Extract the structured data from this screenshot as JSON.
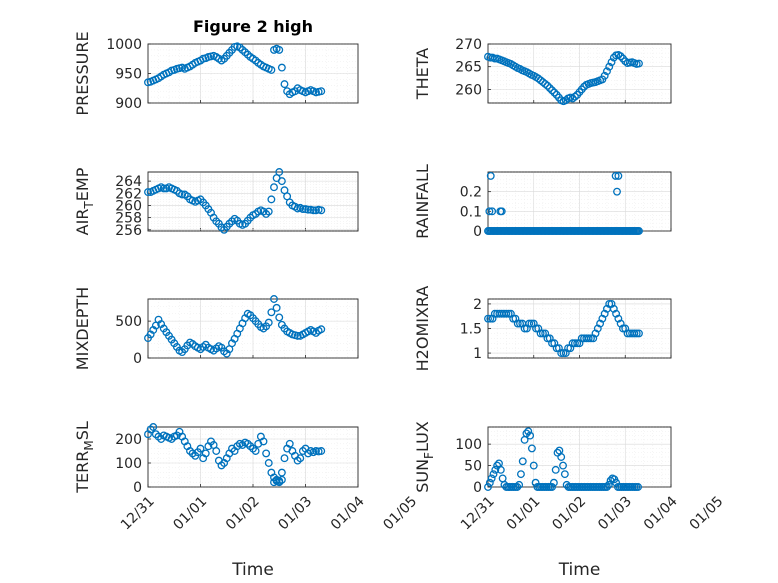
{
  "chart_data": [
    {
      "id": "pressure",
      "type": "scatter",
      "title": "Figure 2 high",
      "ylabel": "PRESSURE",
      "ylim": [
        900,
        1000
      ],
      "yticks": [
        900,
        950,
        1000
      ],
      "xlim": [
        0,
        4
      ],
      "xtick_labels": [],
      "x": [
        0,
        0.05,
        0.1,
        0.15,
        0.2,
        0.25,
        0.3,
        0.35,
        0.4,
        0.45,
        0.5,
        0.55,
        0.6,
        0.65,
        0.7,
        0.75,
        0.8,
        0.85,
        0.9,
        0.95,
        1.0,
        1.05,
        1.1,
        1.15,
        1.2,
        1.25,
        1.3,
        1.35,
        1.4,
        1.45,
        1.5,
        1.55,
        1.6,
        1.65,
        1.7,
        1.75,
        1.8,
        1.85,
        1.9,
        1.95,
        2.0,
        2.05,
        2.1,
        2.15,
        2.2,
        2.25,
        2.3,
        2.35,
        2.4,
        2.45,
        2.5,
        2.55,
        2.6,
        2.65,
        2.7,
        2.75,
        2.8,
        2.85,
        2.9,
        2.95,
        3.0,
        3.05,
        3.1,
        3.15,
        3.2,
        3.25,
        3.3
      ],
      "values": [
        935,
        936,
        938,
        940,
        942,
        945,
        948,
        950,
        952,
        955,
        956,
        958,
        959,
        960,
        958,
        960,
        962,
        965,
        968,
        970,
        972,
        975,
        976,
        978,
        979,
        980,
        978,
        975,
        972,
        975,
        980,
        985,
        990,
        995,
        996,
        994,
        990,
        986,
        982,
        978,
        975,
        972,
        968,
        965,
        962,
        960,
        958,
        956,
        990,
        992,
        990,
        960,
        932,
        920,
        915,
        918,
        920,
        925,
        922,
        920,
        918,
        920,
        922,
        920,
        918,
        919,
        920
      ]
    },
    {
      "id": "theta",
      "type": "scatter",
      "title": "",
      "ylabel": "THETA",
      "ylim": [
        257,
        270
      ],
      "yticks": [
        260,
        265,
        270
      ],
      "xlim": [
        0,
        4
      ],
      "xtick_labels": [],
      "x": [
        0,
        0.05,
        0.1,
        0.15,
        0.2,
        0.25,
        0.3,
        0.35,
        0.4,
        0.45,
        0.5,
        0.55,
        0.6,
        0.65,
        0.7,
        0.75,
        0.8,
        0.85,
        0.9,
        0.95,
        1.0,
        1.05,
        1.1,
        1.15,
        1.2,
        1.25,
        1.3,
        1.35,
        1.4,
        1.45,
        1.5,
        1.55,
        1.6,
        1.65,
        1.7,
        1.75,
        1.8,
        1.85,
        1.9,
        1.95,
        2.0,
        2.05,
        2.1,
        2.15,
        2.2,
        2.25,
        2.3,
        2.35,
        2.4,
        2.45,
        2.5,
        2.55,
        2.6,
        2.65,
        2.7,
        2.75,
        2.8,
        2.85,
        2.9,
        2.95,
        3.0,
        3.05,
        3.1,
        3.15,
        3.2,
        3.25,
        3.3
      ],
      "values": [
        267.2,
        267.0,
        267.0,
        266.8,
        266.8,
        266.6,
        266.4,
        266.2,
        266.0,
        265.8,
        265.6,
        265.3,
        265.0,
        264.7,
        264.5,
        264.2,
        264.0,
        263.8,
        263.5,
        263.2,
        263.0,
        262.7,
        262.4,
        262.0,
        261.6,
        261.2,
        260.8,
        260.3,
        259.8,
        259.3,
        258.8,
        258.2,
        257.6,
        257.4,
        257.6,
        258.0,
        258.2,
        258.0,
        258.4,
        258.8,
        259.4,
        260.0,
        260.6,
        261.0,
        261.2,
        261.4,
        261.5,
        261.6,
        261.8,
        262.0,
        262.2,
        263.0,
        264.0,
        265.0,
        266.0,
        267.0,
        267.5,
        267.6,
        267.3,
        266.8,
        266.2,
        265.8,
        265.9,
        266.0,
        265.8,
        265.6,
        265.7
      ]
    },
    {
      "id": "air_temp",
      "type": "scatter",
      "title": "",
      "ylabel": "AIR",
      "ylabel_sub": "T",
      "ylabel_suffix": "EMP",
      "ylim": [
        255.8,
        265.5
      ],
      "yticks": [
        256,
        258,
        260,
        262,
        264
      ],
      "xlim": [
        0,
        4
      ],
      "xtick_labels": [],
      "x": [
        0,
        0.05,
        0.1,
        0.15,
        0.2,
        0.25,
        0.3,
        0.35,
        0.4,
        0.45,
        0.5,
        0.55,
        0.6,
        0.65,
        0.7,
        0.75,
        0.8,
        0.85,
        0.9,
        0.95,
        1.0,
        1.05,
        1.1,
        1.15,
        1.2,
        1.25,
        1.3,
        1.35,
        1.4,
        1.45,
        1.5,
        1.55,
        1.6,
        1.65,
        1.7,
        1.75,
        1.8,
        1.85,
        1.9,
        1.95,
        2.0,
        2.05,
        2.1,
        2.15,
        2.2,
        2.25,
        2.3,
        2.35,
        2.4,
        2.45,
        2.5,
        2.55,
        2.6,
        2.65,
        2.7,
        2.75,
        2.8,
        2.85,
        2.9,
        2.95,
        3.0,
        3.05,
        3.1,
        3.15,
        3.2,
        3.25,
        3.3
      ],
      "values": [
        262.2,
        262.2,
        262.4,
        262.6,
        262.8,
        263.0,
        262.8,
        262.8,
        263.0,
        262.8,
        262.6,
        262.4,
        262.0,
        261.8,
        261.8,
        261.5,
        261.0,
        260.8,
        260.6,
        260.8,
        261.0,
        260.5,
        260.0,
        259.4,
        258.8,
        258.0,
        257.4,
        257.0,
        256.4,
        256.0,
        256.5,
        257.0,
        257.4,
        257.8,
        257.5,
        257.0,
        256.8,
        257.0,
        257.5,
        258.0,
        258.4,
        258.6,
        259.0,
        259.2,
        259.0,
        258.6,
        259.0,
        261.0,
        263.0,
        264.5,
        265.5,
        264.0,
        262.5,
        261.5,
        260.5,
        260.0,
        259.8,
        259.5,
        259.6,
        259.4,
        259.4,
        259.3,
        259.3,
        259.2,
        259.2,
        259.3,
        259.2
      ]
    },
    {
      "id": "rainfall",
      "type": "scatter",
      "title": "",
      "ylabel": "RAINFALL",
      "ylim": [
        0,
        0.3
      ],
      "yticks": [
        0,
        0.1,
        0.2
      ],
      "ytick_labels": [
        "0",
        "0.1",
        "0.2"
      ],
      "xlim": [
        0,
        4
      ],
      "xtick_labels": [],
      "x": [
        0,
        0.03,
        0.06,
        0.09,
        0.12,
        0.15,
        0.18,
        0.21,
        0.24,
        0.27,
        0.3,
        0.33,
        0.36,
        0.39,
        0.42,
        0.45,
        0.48,
        0.51,
        0.54,
        0.57,
        0.6,
        0.63,
        0.66,
        0.69,
        0.72,
        0.75,
        0.78,
        0.81,
        0.84,
        0.87,
        0.9,
        0.93,
        0.96,
        0.99,
        1.02,
        1.05,
        1.08,
        1.11,
        1.14,
        1.17,
        1.2,
        1.23,
        1.26,
        1.29,
        1.32,
        1.35,
        1.38,
        1.41,
        1.44,
        1.47,
        1.5,
        1.53,
        1.56,
        1.59,
        1.62,
        1.65,
        1.68,
        1.71,
        1.74,
        1.77,
        1.8,
        1.83,
        1.86,
        1.89,
        1.92,
        1.95,
        1.98,
        2.01,
        2.04,
        2.07,
        2.1,
        2.13,
        2.16,
        2.19,
        2.22,
        2.25,
        2.28,
        2.31,
        2.34,
        2.37,
        2.4,
        2.43,
        2.46,
        2.49,
        2.52,
        2.55,
        2.58,
        2.61,
        2.64,
        2.67,
        2.7,
        2.73,
        2.76,
        2.79,
        2.82,
        2.85,
        2.88,
        2.91,
        2.94,
        2.97,
        3.0,
        3.03,
        3.06,
        3.09,
        3.12,
        3.15,
        3.18,
        3.21,
        3.24,
        3.27,
        3.3,
        0.03,
        0.06,
        0.09,
        0.27,
        0.3,
        2.79,
        2.82,
        2.85
      ],
      "values": [
        0,
        0,
        0,
        0,
        0,
        0,
        0,
        0,
        0,
        0,
        0,
        0,
        0,
        0,
        0,
        0,
        0,
        0,
        0,
        0,
        0,
        0,
        0,
        0,
        0,
        0,
        0,
        0,
        0,
        0,
        0,
        0,
        0,
        0,
        0,
        0,
        0,
        0,
        0,
        0,
        0,
        0,
        0,
        0,
        0,
        0,
        0,
        0,
        0,
        0,
        0,
        0,
        0,
        0,
        0,
        0,
        0,
        0,
        0,
        0,
        0,
        0,
        0,
        0,
        0,
        0,
        0,
        0,
        0,
        0,
        0,
        0,
        0,
        0,
        0,
        0,
        0,
        0,
        0,
        0,
        0,
        0,
        0,
        0,
        0,
        0,
        0,
        0,
        0,
        0,
        0,
        0,
        0,
        0,
        0,
        0,
        0,
        0,
        0,
        0,
        0,
        0,
        0,
        0,
        0,
        0,
        0,
        0,
        0,
        0,
        0,
        0.1,
        0.28,
        0.1,
        0.1,
        0.1,
        0.28,
        0.2,
        0.28
      ]
    },
    {
      "id": "mixdepth",
      "type": "scatter",
      "title": "",
      "ylabel": "MIXDEPTH",
      "ylim": [
        0,
        800
      ],
      "yticks": [
        0,
        500
      ],
      "xlim": [
        0,
        4
      ],
      "xtick_labels": [],
      "x": [
        0,
        0.05,
        0.1,
        0.15,
        0.2,
        0.25,
        0.3,
        0.35,
        0.4,
        0.45,
        0.5,
        0.55,
        0.6,
        0.65,
        0.7,
        0.75,
        0.8,
        0.85,
        0.9,
        0.95,
        1.0,
        1.05,
        1.1,
        1.15,
        1.2,
        1.25,
        1.3,
        1.35,
        1.4,
        1.45,
        1.5,
        1.55,
        1.6,
        1.65,
        1.7,
        1.75,
        1.8,
        1.85,
        1.9,
        1.95,
        2.0,
        2.05,
        2.1,
        2.15,
        2.2,
        2.25,
        2.3,
        2.35,
        2.4,
        2.45,
        2.5,
        2.55,
        2.6,
        2.65,
        2.7,
        2.75,
        2.8,
        2.85,
        2.9,
        2.95,
        3.0,
        3.05,
        3.1,
        3.15,
        3.2,
        3.25,
        3.3
      ],
      "values": [
        270,
        320,
        380,
        440,
        520,
        460,
        400,
        350,
        300,
        250,
        200,
        150,
        100,
        80,
        120,
        170,
        210,
        190,
        160,
        140,
        120,
        150,
        180,
        140,
        120,
        100,
        130,
        160,
        140,
        90,
        60,
        120,
        200,
        260,
        330,
        400,
        470,
        540,
        600,
        580,
        540,
        500,
        460,
        420,
        400,
        430,
        480,
        620,
        800,
        680,
        550,
        450,
        400,
        360,
        340,
        320,
        310,
        300,
        300,
        320,
        340,
        360,
        380,
        360,
        340,
        370,
        390
      ]
    },
    {
      "id": "h2omixra",
      "type": "scatter",
      "title": "",
      "ylabel": "H2OMIXRA",
      "ylim": [
        0.9,
        2.1
      ],
      "yticks": [
        1,
        1.5,
        2
      ],
      "ytick_labels": [
        "1",
        "1.5",
        "2"
      ],
      "xlim": [
        0,
        4
      ],
      "xtick_labels": [],
      "x": [
        0,
        0.05,
        0.1,
        0.15,
        0.2,
        0.25,
        0.3,
        0.35,
        0.4,
        0.45,
        0.5,
        0.55,
        0.6,
        0.65,
        0.7,
        0.75,
        0.8,
        0.85,
        0.9,
        0.95,
        1.0,
        1.05,
        1.1,
        1.15,
        1.2,
        1.25,
        1.3,
        1.35,
        1.4,
        1.45,
        1.5,
        1.55,
        1.6,
        1.65,
        1.7,
        1.75,
        1.8,
        1.85,
        1.9,
        1.95,
        2.0,
        2.05,
        2.1,
        2.15,
        2.2,
        2.25,
        2.3,
        2.35,
        2.4,
        2.45,
        2.5,
        2.55,
        2.6,
        2.65,
        2.7,
        2.75,
        2.8,
        2.85,
        2.9,
        2.95,
        3.0,
        3.05,
        3.1,
        3.15,
        3.2,
        3.25,
        3.3
      ],
      "values": [
        1.7,
        1.7,
        1.7,
        1.8,
        1.8,
        1.8,
        1.8,
        1.8,
        1.8,
        1.8,
        1.8,
        1.7,
        1.7,
        1.6,
        1.6,
        1.6,
        1.5,
        1.5,
        1.6,
        1.6,
        1.6,
        1.5,
        1.5,
        1.4,
        1.4,
        1.4,
        1.3,
        1.3,
        1.2,
        1.2,
        1.1,
        1.1,
        1.0,
        1.0,
        1.0,
        1.1,
        1.1,
        1.2,
        1.2,
        1.2,
        1.2,
        1.3,
        1.3,
        1.3,
        1.3,
        1.3,
        1.3,
        1.4,
        1.5,
        1.6,
        1.7,
        1.8,
        1.9,
        2.0,
        2.0,
        1.9,
        1.8,
        1.7,
        1.6,
        1.5,
        1.5,
        1.4,
        1.4,
        1.4,
        1.4,
        1.4,
        1.4
      ]
    },
    {
      "id": "terr_msl",
      "type": "scatter",
      "title": "",
      "ylabel": "TERR",
      "ylabel_sub": "M",
      "ylabel_suffix": "SL",
      "ylim": [
        0,
        250
      ],
      "yticks": [
        0,
        100,
        200
      ],
      "xlim": [
        0,
        4
      ],
      "xtick_labels": [
        "12/31",
        "01/01",
        "01/02",
        "01/03",
        "01/04",
        "01/05"
      ],
      "xlabel": "Time",
      "x": [
        0,
        0.05,
        0.1,
        0.15,
        0.2,
        0.25,
        0.3,
        0.35,
        0.4,
        0.45,
        0.5,
        0.55,
        0.6,
        0.65,
        0.7,
        0.75,
        0.8,
        0.85,
        0.9,
        0.95,
        1.0,
        1.05,
        1.1,
        1.15,
        1.2,
        1.25,
        1.3,
        1.35,
        1.4,
        1.45,
        1.5,
        1.55,
        1.6,
        1.65,
        1.7,
        1.75,
        1.8,
        1.85,
        1.9,
        1.95,
        2.0,
        2.05,
        2.1,
        2.15,
        2.2,
        2.25,
        2.3,
        2.35,
        2.4,
        2.45,
        2.5,
        2.55,
        2.6,
        2.65,
        2.7,
        2.75,
        2.8,
        2.85,
        2.9,
        2.95,
        3.0,
        3.05,
        3.1,
        3.15,
        3.2,
        3.25,
        3.3,
        2.4,
        2.45,
        2.5,
        2.55
      ],
      "values": [
        220,
        240,
        250,
        220,
        210,
        200,
        215,
        210,
        205,
        200,
        210,
        215,
        230,
        210,
        190,
        170,
        150,
        140,
        130,
        145,
        160,
        120,
        140,
        170,
        190,
        175,
        150,
        110,
        90,
        100,
        120,
        140,
        160,
        150,
        170,
        180,
        175,
        185,
        180,
        170,
        160,
        150,
        180,
        210,
        190,
        140,
        100,
        60,
        40,
        30,
        20,
        60,
        120,
        160,
        180,
        150,
        130,
        110,
        120,
        150,
        160,
        140,
        150,
        145,
        150,
        148,
        150,
        20,
        25,
        25,
        30
      ]
    },
    {
      "id": "sun_flux",
      "type": "scatter",
      "title": "",
      "ylabel": "SUN",
      "ylabel_sub": "F",
      "ylabel_suffix": "LUX",
      "ylim": [
        0,
        140
      ],
      "yticks": [
        0,
        50,
        100
      ],
      "xlim": [
        0,
        4
      ],
      "xtick_labels": [
        "12/31",
        "01/01",
        "01/02",
        "01/03",
        "01/04",
        "01/05"
      ],
      "xlabel": "Time",
      "x": [
        0,
        0.04,
        0.08,
        0.12,
        0.16,
        0.2,
        0.24,
        0.28,
        0.32,
        0.36,
        0.4,
        0.44,
        0.48,
        0.52,
        0.56,
        0.6,
        0.64,
        0.68,
        0.72,
        0.76,
        0.8,
        0.84,
        0.88,
        0.92,
        0.96,
        1.0,
        1.04,
        1.08,
        1.12,
        1.16,
        1.2,
        1.24,
        1.28,
        1.32,
        1.36,
        1.4,
        1.44,
        1.48,
        1.52,
        1.56,
        1.6,
        1.64,
        1.68,
        1.72,
        1.76,
        1.8,
        1.84,
        1.88,
        1.92,
        1.96,
        2.0,
        2.04,
        2.08,
        2.12,
        2.16,
        2.2,
        2.24,
        2.28,
        2.32,
        2.36,
        2.4,
        2.44,
        2.48,
        2.52,
        2.56,
        2.6,
        2.64,
        2.68,
        2.72,
        2.76,
        2.8,
        2.84,
        2.88,
        2.92,
        2.96,
        3.0,
        3.04,
        3.08,
        3.12,
        3.16,
        3.2,
        3.24,
        3.28
      ],
      "values": [
        0,
        10,
        20,
        30,
        40,
        50,
        55,
        40,
        20,
        5,
        0,
        0,
        0,
        0,
        0,
        0,
        0,
        5,
        30,
        60,
        110,
        125,
        130,
        120,
        90,
        50,
        10,
        0,
        0,
        0,
        0,
        0,
        0,
        0,
        0,
        0,
        10,
        40,
        80,
        85,
        70,
        50,
        30,
        5,
        0,
        0,
        0,
        0,
        0,
        0,
        0,
        0,
        0,
        0,
        0,
        0,
        0,
        0,
        0,
        0,
        0,
        0,
        0,
        0,
        0,
        0,
        5,
        15,
        20,
        18,
        10,
        0,
        0,
        0,
        0,
        0,
        0,
        0,
        0,
        0,
        0,
        0,
        0
      ]
    }
  ]
}
